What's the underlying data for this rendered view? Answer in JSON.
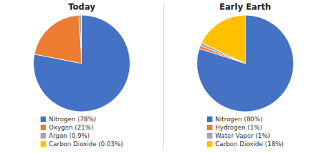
{
  "chart_data": [
    {
      "type": "pie",
      "title": "Today",
      "categories": [
        "Nitrogen (78%)",
        "Oxygen (21%)",
        "Argon (0.9%)",
        "Carbon Dioxide (0.03%)"
      ],
      "values": [
        78,
        21,
        0.9,
        0.03
      ],
      "colors": [
        "#4472C4",
        "#ED7D31",
        "#A5A5A5",
        "#FFC000"
      ],
      "legend": "bottom"
    },
    {
      "type": "pie",
      "title": "Early Earth",
      "categories": [
        "Nitrogen (80%)",
        "Hydrogen (1%)",
        "Water Vapor (1%)",
        "Carbon Dioxide (18%)"
      ],
      "values": [
        80,
        1,
        1,
        18
      ],
      "colors": [
        "#4472C4",
        "#ED7D31",
        "#A5A5A5",
        "#FFC000"
      ],
      "legend": "bottom"
    }
  ]
}
